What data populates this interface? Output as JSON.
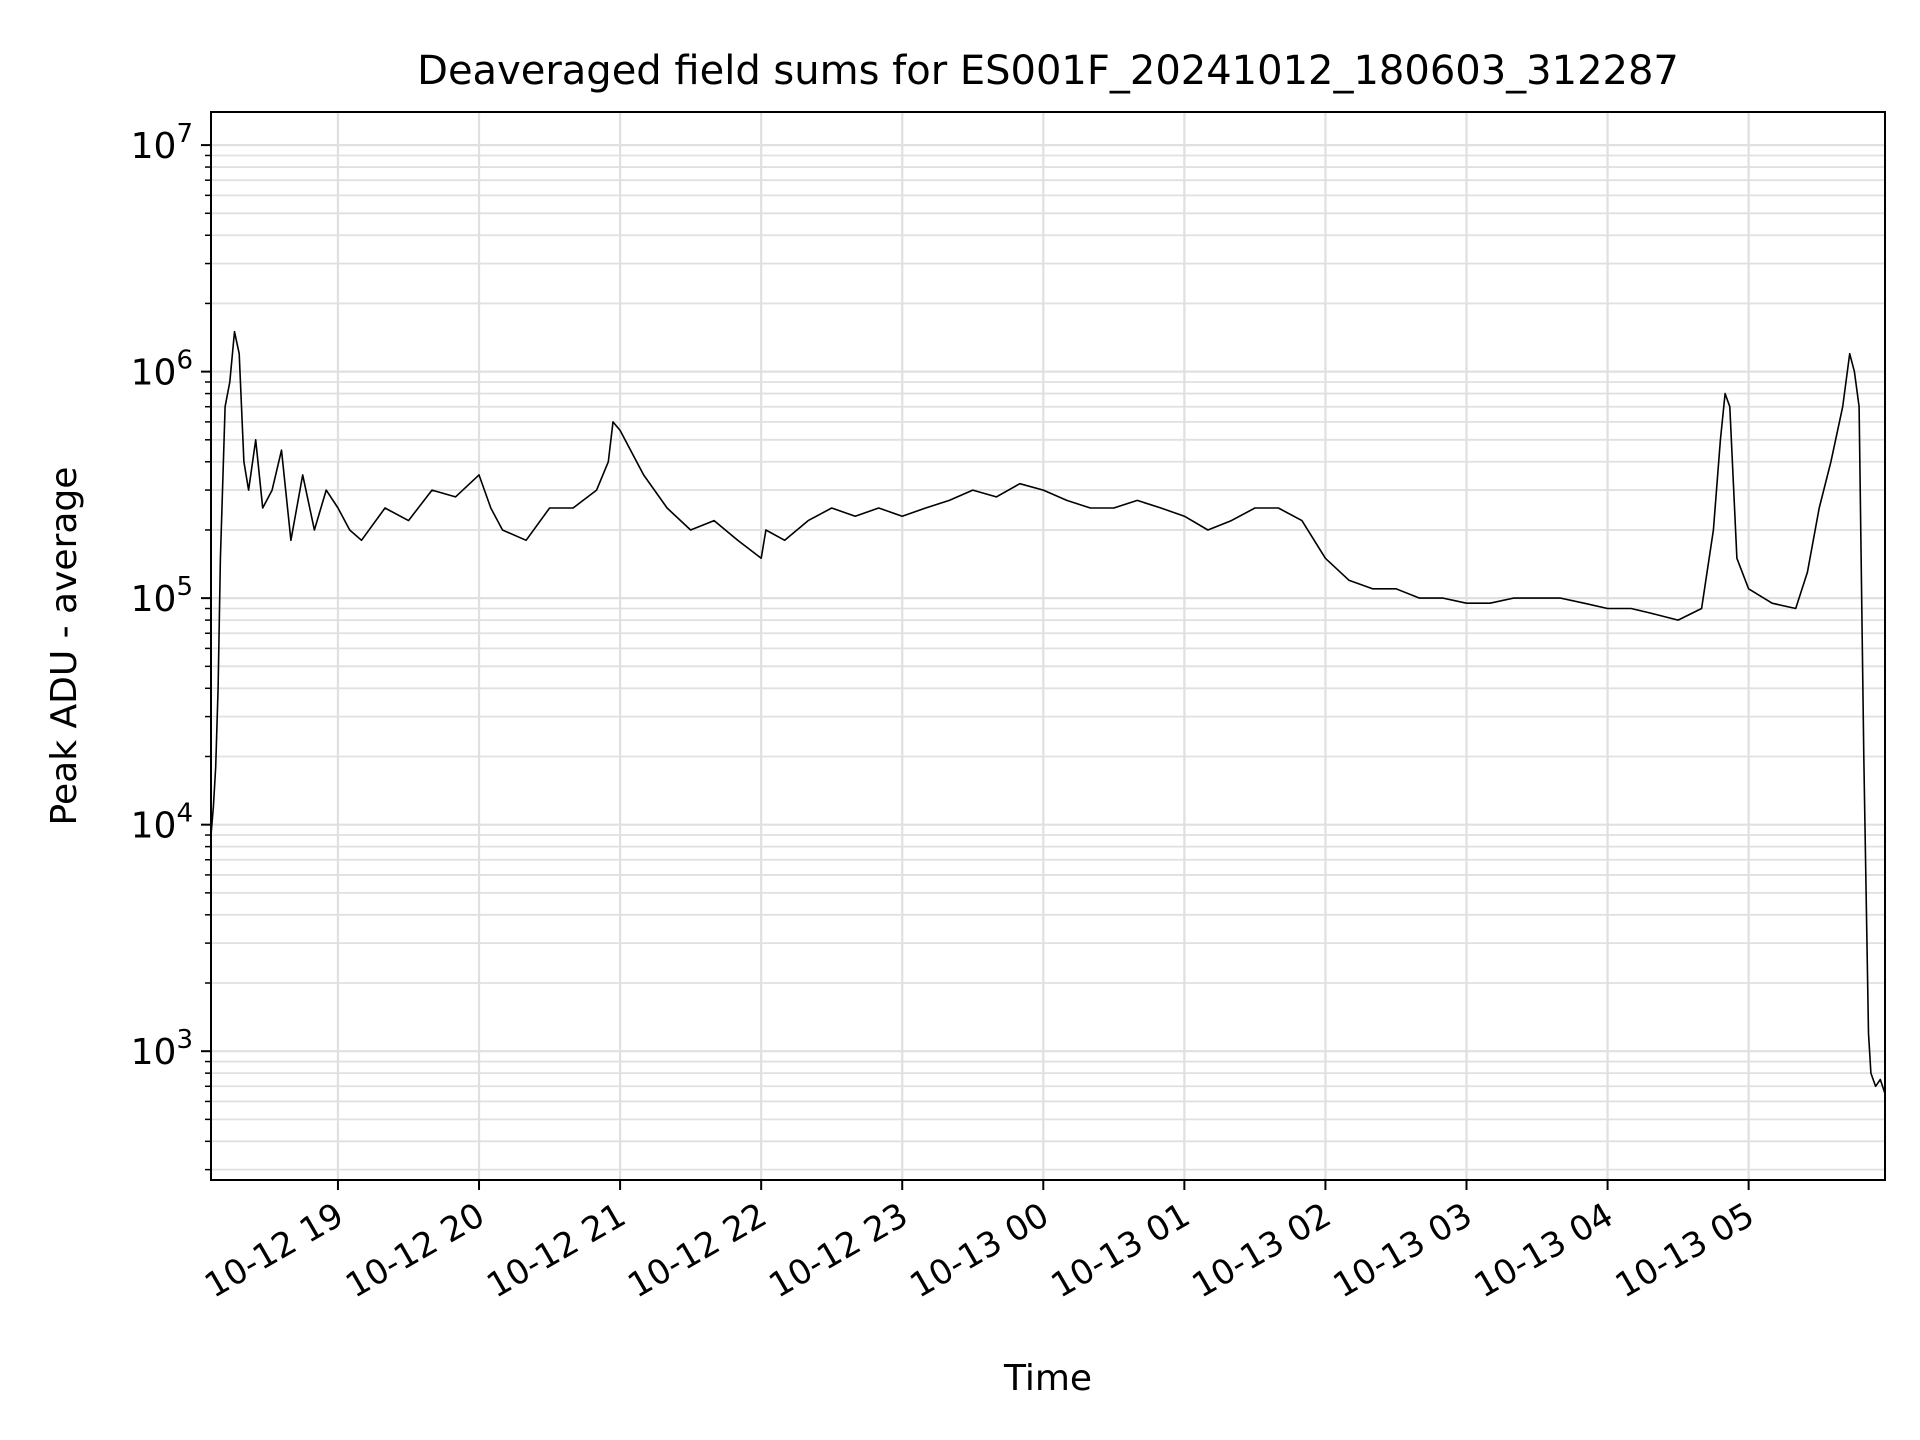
{
  "chart_data": {
    "type": "line",
    "title": "Deaveraged field sums for ES001F_20241012_180603_312287",
    "xlabel": "Time",
    "ylabel": "Peak ADU - average",
    "x_scale": "time",
    "y_scale": "log",
    "xlim": [
      "2024-10-12 18:06",
      "2024-10-13 05:58"
    ],
    "ylim": [
      270,
      14000000
    ],
    "grid": true,
    "line_color": "#000000",
    "grid_color": "#e0e0e0",
    "x_ticks": [
      {
        "value": "2024-10-12 19:00",
        "label": "10-12 19"
      },
      {
        "value": "2024-10-12 20:00",
        "label": "10-12 20"
      },
      {
        "value": "2024-10-12 21:00",
        "label": "10-12 21"
      },
      {
        "value": "2024-10-12 22:00",
        "label": "10-12 22"
      },
      {
        "value": "2024-10-12 23:00",
        "label": "10-12 23"
      },
      {
        "value": "2024-10-13 00:00",
        "label": "10-13 00"
      },
      {
        "value": "2024-10-13 01:00",
        "label": "10-13 01"
      },
      {
        "value": "2024-10-13 02:00",
        "label": "10-13 02"
      },
      {
        "value": "2024-10-13 03:00",
        "label": "10-13 03"
      },
      {
        "value": "2024-10-13 04:00",
        "label": "10-13 04"
      },
      {
        "value": "2024-10-13 05:00",
        "label": "10-13 05"
      }
    ],
    "y_ticks": [
      {
        "value": 1000,
        "base": "10",
        "exp": "3"
      },
      {
        "value": 10000,
        "base": "10",
        "exp": "4"
      },
      {
        "value": 100000,
        "base": "10",
        "exp": "5"
      },
      {
        "value": 1000000,
        "base": "10",
        "exp": "6"
      },
      {
        "value": 10000000,
        "base": "10",
        "exp": "7"
      }
    ],
    "series": [
      {
        "x": [
          "2024-10-12 18:06",
          "2024-10-12 18:07",
          "2024-10-12 18:08",
          "2024-10-12 18:09",
          "2024-10-12 18:10",
          "2024-10-12 18:12",
          "2024-10-12 18:14",
          "2024-10-12 18:16",
          "2024-10-12 18:18",
          "2024-10-12 18:20",
          "2024-10-12 18:22",
          "2024-10-12 18:25",
          "2024-10-12 18:28",
          "2024-10-12 18:32",
          "2024-10-12 18:36",
          "2024-10-12 18:40",
          "2024-10-12 18:45",
          "2024-10-12 18:50",
          "2024-10-12 18:55",
          "2024-10-12 19:00",
          "2024-10-12 19:05",
          "2024-10-12 19:10",
          "2024-10-12 19:20",
          "2024-10-12 19:30",
          "2024-10-12 19:40",
          "2024-10-12 19:50",
          "2024-10-12 20:00",
          "2024-10-12 20:05",
          "2024-10-12 20:10",
          "2024-10-12 20:20",
          "2024-10-12 20:30",
          "2024-10-12 20:40",
          "2024-10-12 20:50",
          "2024-10-12 20:55",
          "2024-10-12 20:57",
          "2024-10-12 21:00",
          "2024-10-12 21:10",
          "2024-10-12 21:20",
          "2024-10-12 21:30",
          "2024-10-12 21:40",
          "2024-10-12 21:50",
          "2024-10-12 22:00",
          "2024-10-12 22:02",
          "2024-10-12 22:10",
          "2024-10-12 22:20",
          "2024-10-12 22:30",
          "2024-10-12 22:40",
          "2024-10-12 22:50",
          "2024-10-12 23:00",
          "2024-10-12 23:10",
          "2024-10-12 23:20",
          "2024-10-12 23:30",
          "2024-10-12 23:40",
          "2024-10-12 23:50",
          "2024-10-13 00:00",
          "2024-10-13 00:10",
          "2024-10-13 00:20",
          "2024-10-13 00:30",
          "2024-10-13 00:40",
          "2024-10-13 00:50",
          "2024-10-13 01:00",
          "2024-10-13 01:10",
          "2024-10-13 01:20",
          "2024-10-13 01:30",
          "2024-10-13 01:40",
          "2024-10-13 01:50",
          "2024-10-13 02:00",
          "2024-10-13 02:10",
          "2024-10-13 02:20",
          "2024-10-13 02:30",
          "2024-10-13 02:40",
          "2024-10-13 02:50",
          "2024-10-13 03:00",
          "2024-10-13 03:10",
          "2024-10-13 03:20",
          "2024-10-13 03:30",
          "2024-10-13 03:40",
          "2024-10-13 03:50",
          "2024-10-13 04:00",
          "2024-10-13 04:10",
          "2024-10-13 04:20",
          "2024-10-13 04:30",
          "2024-10-13 04:40",
          "2024-10-13 04:45",
          "2024-10-13 04:48",
          "2024-10-13 04:50",
          "2024-10-13 04:52",
          "2024-10-13 04:55",
          "2024-10-13 05:00",
          "2024-10-13 05:10",
          "2024-10-13 05:20",
          "2024-10-13 05:25",
          "2024-10-13 05:30",
          "2024-10-13 05:35",
          "2024-10-13 05:40",
          "2024-10-13 05:43",
          "2024-10-13 05:45",
          "2024-10-13 05:47",
          "2024-10-13 05:49",
          "2024-10-13 05:51",
          "2024-10-13 05:52",
          "2024-10-13 05:54",
          "2024-10-13 05:56",
          "2024-10-13 05:58"
        ],
        "y": [
          9000,
          12000,
          18000,
          40000,
          150000,
          700000,
          900000,
          1500000,
          1200000,
          400000,
          300000,
          500000,
          250000,
          300000,
          450000,
          180000,
          350000,
          200000,
          300000,
          250000,
          200000,
          180000,
          250000,
          220000,
          300000,
          280000,
          350000,
          250000,
          200000,
          180000,
          250000,
          250000,
          300000,
          400000,
          600000,
          550000,
          350000,
          250000,
          200000,
          220000,
          180000,
          150000,
          200000,
          180000,
          220000,
          250000,
          230000,
          250000,
          230000,
          250000,
          270000,
          300000,
          280000,
          320000,
          300000,
          270000,
          250000,
          250000,
          270000,
          250000,
          230000,
          200000,
          220000,
          250000,
          250000,
          220000,
          150000,
          120000,
          110000,
          110000,
          100000,
          100000,
          95000,
          95000,
          100000,
          100000,
          100000,
          95000,
          90000,
          90000,
          85000,
          80000,
          90000,
          200000,
          500000,
          800000,
          700000,
          150000,
          110000,
          95000,
          90000,
          130000,
          250000,
          400000,
          700000,
          1200000,
          1000000,
          700000,
          20000,
          1200,
          800,
          700,
          750,
          650
        ]
      }
    ]
  }
}
